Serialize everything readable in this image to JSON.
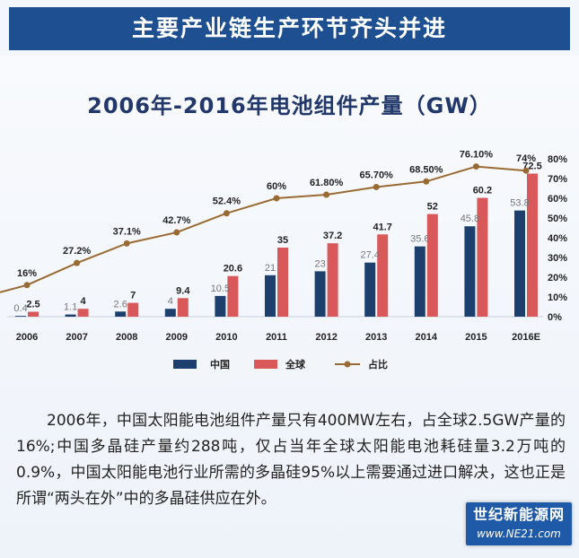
{
  "banner_title": "主要产业链生产环节齐头并进",
  "chart_data": {
    "type": "bar",
    "title": "2006年-2016年电池组件产量（GW）",
    "categories": [
      "2006",
      "2007",
      "2008",
      "2009",
      "2010",
      "2011",
      "2012",
      "2013",
      "2014",
      "2015",
      "2016E"
    ],
    "series": [
      {
        "name": "中国",
        "type": "bar",
        "color": "#1d3f6e",
        "values": [
          0.4,
          1.1,
          2.6,
          4,
          10.5,
          21,
          23,
          27.4,
          35.6,
          45.8,
          53.8
        ],
        "labels": [
          "0.4",
          "1.1",
          "2.6",
          "4",
          "10.5",
          "21",
          "23",
          "27.4",
          "35.6",
          "45.8",
          "53.8"
        ]
      },
      {
        "name": "全球",
        "type": "bar",
        "color": "#d9585a",
        "values": [
          2.5,
          4,
          7,
          9.4,
          20.6,
          35,
          37.2,
          41.7,
          52,
          60.2,
          72.5
        ],
        "labels": [
          "2.5",
          "4",
          "7",
          "9.4",
          "20.6",
          "35",
          "37.2",
          "41.7",
          "52",
          "60.2",
          "72.5"
        ]
      },
      {
        "name": "占比",
        "type": "line",
        "axis": "right",
        "color": "#9a6a33",
        "values": [
          16,
          27.2,
          37.1,
          42.7,
          52.4,
          60,
          61.8,
          65.7,
          68.5,
          76.1,
          74
        ],
        "labels": [
          "16%",
          "27.2%",
          "37.1%",
          "42.7%",
          "52.4%",
          "60%",
          "61.80%",
          "65.70%",
          "68.50%",
          "76.10%",
          "74%"
        ]
      }
    ],
    "y_left_range": [
      0,
      90
    ],
    "y_right_range": [
      0,
      90
    ],
    "y_right_ticks": [
      "0%",
      "10%",
      "20%",
      "30%",
      "40%",
      "50%",
      "60%",
      "70%",
      "80%"
    ],
    "legend_position": "bottom"
  },
  "description": "2006年，中国太阳能电池组件产量只有400MW左右，占全球2.5GW产量的16%;中国多晶硅产量约288吨，仅占当年全球太阳能电池耗硅量3.2万吨的0.9%，中国太阳能电池行业所需的多晶硅95%以上需要通过进口解决，这也正是所谓“两头在外”中的多晶硅供应在外。",
  "watermark": {
    "line1": "世纪新能源网",
    "line2": "www.NE21.com"
  }
}
